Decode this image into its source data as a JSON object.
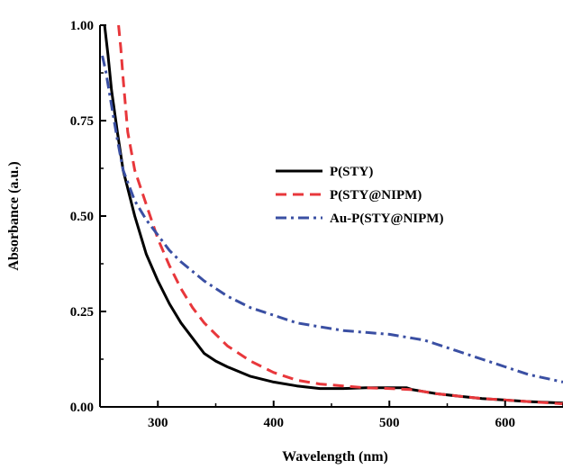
{
  "chart_data": {
    "type": "line",
    "xlabel": "Wavelength (nm)",
    "ylabel": "Absorbance (a.u.)",
    "xlim": [
      250,
      650
    ],
    "ylim": [
      0.0,
      1.0
    ],
    "x_ticks": [
      300,
      400,
      500,
      600
    ],
    "x_tick_labels": [
      "300",
      "400",
      "500",
      "600"
    ],
    "y_ticks": [
      0.0,
      0.25,
      0.5,
      0.75,
      1.0
    ],
    "y_tick_labels": [
      "0.00",
      "0.25",
      "0.50",
      "0.75",
      "1.00"
    ],
    "grid": false,
    "legend_position": "center-right",
    "series": [
      {
        "name": "P(STY)",
        "color": "#000000",
        "dash": "solid",
        "x": [
          254,
          257,
          260,
          265,
          270,
          280,
          290,
          300,
          310,
          320,
          330,
          340,
          350,
          360,
          380,
          400,
          420,
          440,
          460,
          480,
          500,
          515,
          520,
          540,
          560,
          580,
          600,
          620,
          650
        ],
        "y": [
          1.0,
          0.92,
          0.83,
          0.72,
          0.62,
          0.5,
          0.4,
          0.33,
          0.27,
          0.22,
          0.18,
          0.14,
          0.12,
          0.105,
          0.08,
          0.065,
          0.055,
          0.048,
          0.048,
          0.05,
          0.05,
          0.05,
          0.045,
          0.035,
          0.028,
          0.022,
          0.018,
          0.014,
          0.01
        ]
      },
      {
        "name": "P(STY@NIPM)",
        "color": "#e8373b",
        "dash": "dashed",
        "x": [
          266,
          268,
          270,
          274,
          280,
          290,
          300,
          310,
          320,
          330,
          340,
          350,
          360,
          380,
          400,
          420,
          440,
          460,
          480,
          500,
          520,
          540,
          560,
          580,
          600,
          620,
          650
        ],
        "y": [
          1.0,
          0.94,
          0.86,
          0.72,
          0.62,
          0.53,
          0.44,
          0.37,
          0.31,
          0.26,
          0.22,
          0.19,
          0.16,
          0.12,
          0.09,
          0.07,
          0.06,
          0.055,
          0.05,
          0.048,
          0.045,
          0.035,
          0.028,
          0.022,
          0.018,
          0.014,
          0.008
        ]
      },
      {
        "name": "Au-P(STY@NIPM)",
        "color": "#3a4fa3",
        "dash": "dashdot",
        "x": [
          252,
          255,
          260,
          265,
          270,
          280,
          290,
          300,
          310,
          320,
          340,
          360,
          380,
          400,
          420,
          440,
          460,
          480,
          500,
          520,
          530,
          540,
          560,
          580,
          600,
          620,
          650
        ],
        "y": [
          0.92,
          0.88,
          0.79,
          0.7,
          0.62,
          0.54,
          0.49,
          0.45,
          0.41,
          0.38,
          0.33,
          0.29,
          0.26,
          0.24,
          0.22,
          0.21,
          0.2,
          0.195,
          0.19,
          0.18,
          0.175,
          0.165,
          0.145,
          0.125,
          0.105,
          0.085,
          0.065
        ]
      }
    ]
  }
}
